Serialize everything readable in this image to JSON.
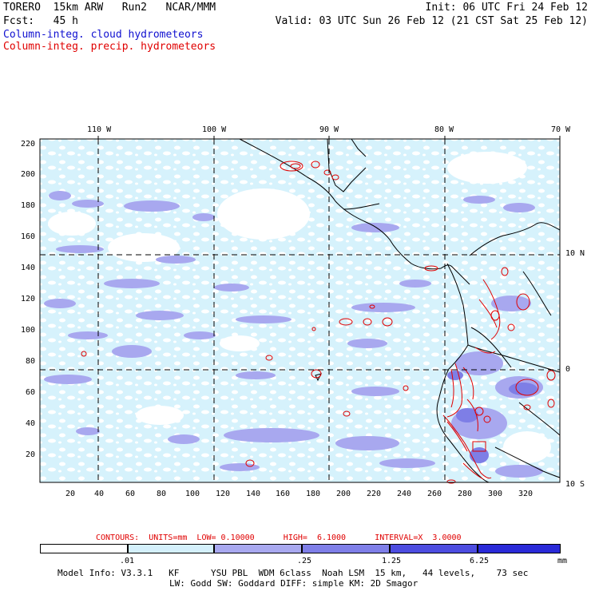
{
  "header": {
    "model": "TORERO  15km ARW   Run2   NCAR/MMM",
    "init": "Init: 06 UTC Fri 24 Feb 12",
    "fcst": "Fcst:   45 h",
    "valid": "Valid: 03 UTC Sun 26 Feb 12 (21 CST Sat 25 Feb 12)",
    "field1": "Column-integ. cloud hydrometeors",
    "field2": "Column-integ. precip. hydrometeors"
  },
  "map": {
    "lon_labels": [
      "110 W",
      "100 W",
      "90 W",
      "80 W",
      "70 W"
    ],
    "lat_labels": [
      "10 N",
      "0",
      "10 S"
    ],
    "y_ticks": [
      "220",
      "200",
      "180",
      "160",
      "140",
      "120",
      "100",
      "80",
      "60",
      "40",
      "20"
    ],
    "x_ticks": [
      "20",
      "40",
      "60",
      "80",
      "100",
      "120",
      "140",
      "160",
      "180",
      "200",
      "220",
      "240",
      "260",
      "280",
      "300",
      "320"
    ]
  },
  "contour_info": {
    "text": "CONTOURS:  UNITS=mm  LOW= 0.10000      HIGH=  6.1000      INTERVAL=X  3.0000"
  },
  "colorbar": {
    "labels": [
      ".01",
      ".25",
      "1.25",
      "6.25"
    ],
    "units": "mm",
    "colors": [
      "#ffffff",
      "#d4f0fb",
      "#a9a9f0",
      "#7f7fe8",
      "#4d4de0",
      "#2a2ad8"
    ]
  },
  "footer": {
    "line1": "Model Info: V3.3.1   KF      YSU PBL  WDM 6class  Noah LSM  15 km,   44 levels,    73 sec",
    "line2": "LW: Godd SW: Goddard DIFF: simple KM: 2D Smagor"
  }
}
